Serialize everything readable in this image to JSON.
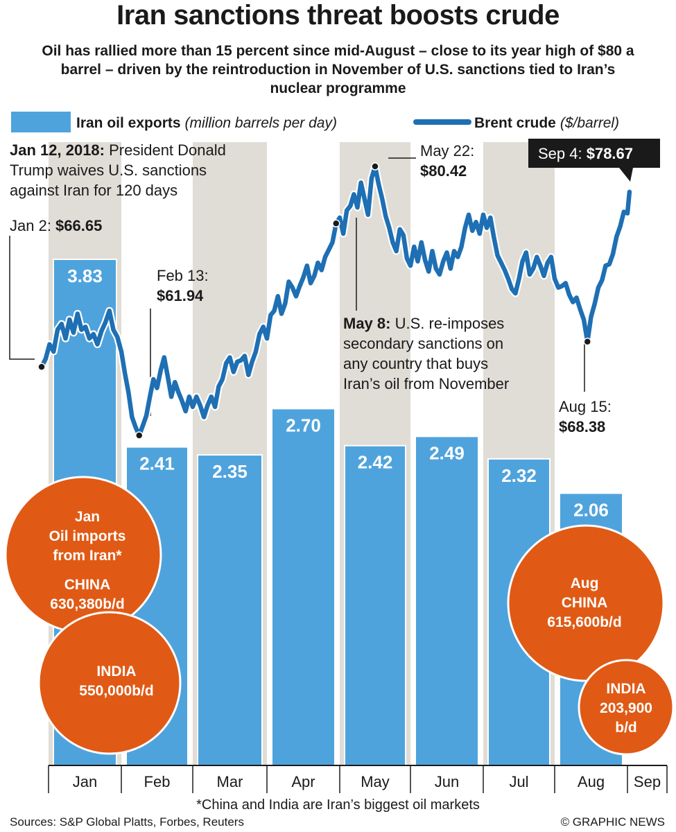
{
  "title": "Iran sanctions threat boosts crude",
  "subtitle": "Oil has rallied more than 15 percent since mid-August – close to its year high of $80 a barrel – driven by the reintroduction in November of U.S. sanctions tied to Iran’s nuclear programme",
  "legend": {
    "bars_label": "Iran oil exports",
    "bars_unit": "(million barrels per day)",
    "line_label": "Brent crude",
    "line_unit": "($/barrel)"
  },
  "colors": {
    "bar": "#4fa3dc",
    "line": "#1e6fb3",
    "shade": "#e0dcd6",
    "bubble": "#e05a15"
  },
  "annotations": {
    "jan12_bold": "Jan 12, 2018:",
    "jan12_text1": " President Donald",
    "jan12_text2": "Trump waives U.S. sanctions",
    "jan12_text3": "against Iran for 120 days",
    "jan2_label": "Jan 2: ",
    "jan2_value": "$66.65",
    "feb13_label": "Feb 13:",
    "feb13_value": "$61.94",
    "may22_label": "May 22:",
    "may22_value": "$80.42",
    "may8_bold": "May 8:",
    "may8_text1": " U.S. re-imposes",
    "may8_text2": "secondary sanctions on",
    "may8_text3": "any country that buys",
    "may8_text4": "Iran’s oil from November",
    "aug15_label": "Aug 15:",
    "aug15_value": "$68.38",
    "sep4_label": "Sep 4: ",
    "sep4_value": "$78.67"
  },
  "bubbles": {
    "jan_l1": "Jan",
    "jan_l2": "Oil imports",
    "jan_l3": "from Iran*",
    "jan_china": "CHINA",
    "jan_china_val": "630,380b/d",
    "jan_india": "INDIA",
    "jan_india_val": "550,000b/d",
    "aug_l1": "Aug",
    "aug_china": "CHINA",
    "aug_china_val": "615,600b/d",
    "aug_india": "INDIA",
    "aug_india_val1": "203,900",
    "aug_india_val2": "b/d"
  },
  "footnote": "*China and India are Iran’s biggest oil markets",
  "source": "Sources: S&P Global Platts, Forbes, Reuters",
  "credit": "© GRAPHIC NEWS",
  "chart_data": {
    "type": "bar+line",
    "categories": [
      "Jan",
      "Feb",
      "Mar",
      "Apr",
      "May",
      "Jun",
      "Jul",
      "Aug",
      "Sep"
    ],
    "bars": {
      "name": "Iran oil exports",
      "unit": "million barrels per day",
      "values": [
        3.83,
        2.41,
        2.35,
        2.7,
        2.42,
        2.49,
        2.32,
        2.06,
        null
      ],
      "labels": [
        "3.83",
        "2.41",
        "2.35",
        "2.70",
        "2.42",
        "2.49",
        "2.32",
        "2.06",
        ""
      ]
    },
    "line": {
      "name": "Brent crude",
      "unit": "$/barrel",
      "points": [
        [
          0.0,
          66.65
        ],
        [
          0.05,
          67.2
        ],
        [
          0.1,
          68.2
        ],
        [
          0.15,
          67.7
        ],
        [
          0.2,
          69.2
        ],
        [
          0.25,
          69.6
        ],
        [
          0.3,
          68.6
        ],
        [
          0.35,
          69.9
        ],
        [
          0.4,
          69.0
        ],
        [
          0.45,
          70.3
        ],
        [
          0.5,
          69.2
        ],
        [
          0.55,
          69.4
        ],
        [
          0.6,
          68.6
        ],
        [
          0.65,
          68.9
        ],
        [
          0.7,
          68.2
        ],
        [
          0.75,
          69.1
        ],
        [
          0.8,
          69.7
        ],
        [
          0.85,
          70.5
        ],
        [
          0.9,
          69.2
        ],
        [
          0.95,
          68.7
        ],
        [
          1.0,
          67.7
        ],
        [
          1.05,
          66.2
        ],
        [
          1.1,
          64.9
        ],
        [
          1.15,
          63.2
        ],
        [
          1.2,
          62.5
        ],
        [
          1.25,
          61.94
        ],
        [
          1.3,
          62.6
        ],
        [
          1.35,
          63.3
        ],
        [
          1.4,
          64.6
        ],
        [
          1.45,
          65.8
        ],
        [
          1.5,
          65.2
        ],
        [
          1.55,
          66.4
        ],
        [
          1.6,
          67.3
        ],
        [
          1.65,
          66.0
        ],
        [
          1.7,
          64.6
        ],
        [
          1.75,
          65.6
        ],
        [
          1.8,
          64.9
        ],
        [
          1.85,
          64.3
        ],
        [
          1.9,
          63.6
        ],
        [
          1.95,
          64.6
        ],
        [
          2.0,
          63.9
        ],
        [
          2.05,
          64.6
        ],
        [
          2.1,
          64.0
        ],
        [
          2.15,
          63.2
        ],
        [
          2.2,
          64.0
        ],
        [
          2.25,
          64.6
        ],
        [
          2.3,
          63.9
        ],
        [
          2.35,
          65.3
        ],
        [
          2.4,
          65.8
        ],
        [
          2.45,
          66.9
        ],
        [
          2.5,
          67.3
        ],
        [
          2.55,
          66.3
        ],
        [
          2.6,
          67.0
        ],
        [
          2.65,
          67.1
        ],
        [
          2.7,
          67.4
        ],
        [
          2.75,
          66.1
        ],
        [
          2.8,
          67.0
        ],
        [
          2.85,
          67.7
        ],
        [
          2.9,
          68.9
        ],
        [
          2.95,
          69.4
        ],
        [
          3.0,
          68.6
        ],
        [
          3.05,
          70.2
        ],
        [
          3.1,
          70.5
        ],
        [
          3.15,
          71.5
        ],
        [
          3.2,
          70.3
        ],
        [
          3.25,
          71.0
        ],
        [
          3.3,
          72.5
        ],
        [
          3.35,
          72.1
        ],
        [
          3.4,
          71.5
        ],
        [
          3.45,
          72.2
        ],
        [
          3.5,
          72.8
        ],
        [
          3.55,
          73.6
        ],
        [
          3.6,
          72.4
        ],
        [
          3.65,
          72.9
        ],
        [
          3.7,
          73.8
        ],
        [
          3.75,
          73.3
        ],
        [
          3.8,
          74.2
        ],
        [
          3.85,
          74.7
        ],
        [
          3.9,
          75.2
        ],
        [
          3.95,
          76.5
        ],
        [
          4.0,
          76.9
        ],
        [
          4.05,
          75.8
        ],
        [
          4.1,
          77.4
        ],
        [
          4.15,
          77.7
        ],
        [
          4.2,
          78.5
        ],
        [
          4.25,
          77.6
        ],
        [
          4.3,
          79.3
        ],
        [
          4.35,
          78.2
        ],
        [
          4.4,
          77.1
        ],
        [
          4.45,
          79.6
        ],
        [
          4.5,
          80.42
        ],
        [
          4.55,
          79.2
        ],
        [
          4.6,
          78.2
        ],
        [
          4.65,
          77.0
        ],
        [
          4.7,
          76.2
        ],
        [
          4.75,
          75.2
        ],
        [
          4.8,
          74.6
        ],
        [
          4.85,
          76.1
        ],
        [
          4.9,
          75.7
        ],
        [
          4.95,
          74.1
        ],
        [
          5.0,
          73.6
        ],
        [
          5.05,
          74.9
        ],
        [
          5.1,
          73.9
        ],
        [
          5.15,
          75.2
        ],
        [
          5.2,
          74.0
        ],
        [
          5.25,
          73.2
        ],
        [
          5.3,
          74.6
        ],
        [
          5.35,
          73.4
        ],
        [
          5.4,
          73.0
        ],
        [
          5.45,
          73.9
        ],
        [
          5.5,
          74.5
        ],
        [
          5.55,
          73.4
        ],
        [
          5.6,
          74.6
        ],
        [
          5.65,
          74.2
        ],
        [
          5.7,
          74.9
        ],
        [
          5.75,
          76.2
        ],
        [
          5.8,
          77.1
        ],
        [
          5.85,
          76.0
        ],
        [
          5.9,
          76.6
        ],
        [
          5.95,
          75.8
        ],
        [
          6.0,
          77.1
        ],
        [
          6.05,
          76.2
        ],
        [
          6.1,
          76.9
        ],
        [
          6.15,
          75.5
        ],
        [
          6.2,
          74.3
        ],
        [
          6.25,
          73.8
        ],
        [
          6.3,
          73.3
        ],
        [
          6.35,
          72.7
        ],
        [
          6.4,
          72.0
        ],
        [
          6.45,
          71.7
        ],
        [
          6.5,
          72.7
        ],
        [
          6.55,
          73.9
        ],
        [
          6.6,
          74.5
        ],
        [
          6.65,
          73.0
        ],
        [
          6.7,
          73.4
        ],
        [
          6.75,
          74.2
        ],
        [
          6.8,
          73.6
        ],
        [
          6.85,
          72.9
        ],
        [
          6.9,
          73.8
        ],
        [
          6.95,
          74.2
        ],
        [
          7.0,
          72.7
        ],
        [
          7.05,
          72.1
        ],
        [
          7.1,
          72.2
        ],
        [
          7.15,
          72.4
        ],
        [
          7.2,
          71.6
        ],
        [
          7.25,
          71.1
        ],
        [
          7.3,
          71.4
        ],
        [
          7.35,
          70.6
        ],
        [
          7.4,
          69.9
        ],
        [
          7.45,
          68.38
        ],
        [
          7.5,
          70.1
        ],
        [
          7.55,
          71.0
        ],
        [
          7.6,
          72.1
        ],
        [
          7.65,
          72.6
        ],
        [
          7.7,
          73.6
        ],
        [
          7.75,
          73.7
        ],
        [
          7.8,
          74.4
        ],
        [
          7.85,
          75.6
        ],
        [
          7.9,
          76.3
        ],
        [
          7.95,
          77.3
        ],
        [
          8.0,
          77.2
        ],
        [
          8.05,
          78.67
        ]
      ]
    },
    "ylim_bars": [
      0,
      4.5
    ],
    "ylim_line": [
      59,
      84
    ]
  }
}
